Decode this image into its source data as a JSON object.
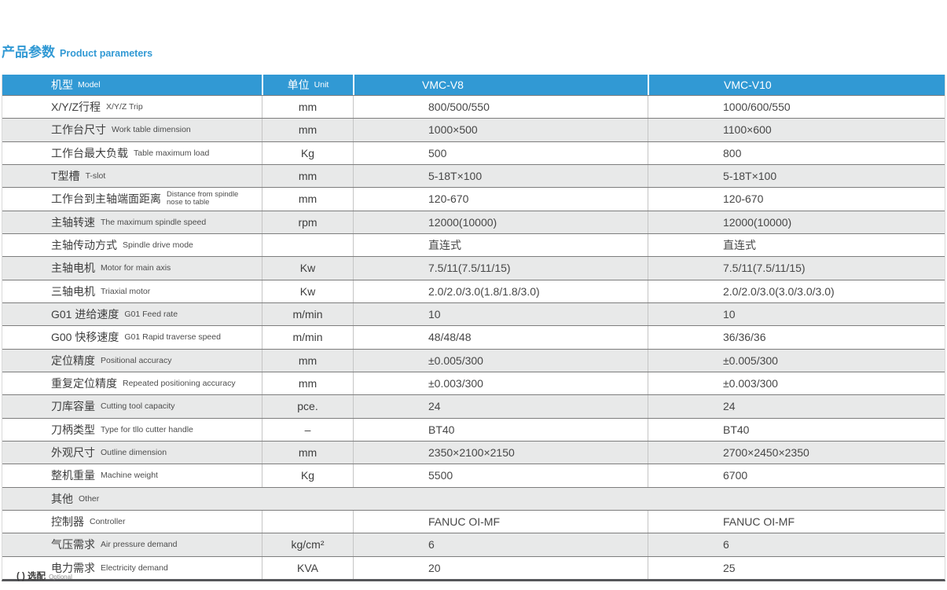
{
  "page": {
    "title_zh": "产品参数",
    "title_en": "Product parameters",
    "footer_zh": "( ) 选配",
    "footer_en": "Optional"
  },
  "colors": {
    "accent_blue": "#3199d4",
    "zebra_gray": "#e8e9e9",
    "bottom_border": "#55565a"
  },
  "table": {
    "header": {
      "col_model_zh": "机型",
      "col_model_en": "Model",
      "col_unit_zh": "单位",
      "col_unit_en": "Unit",
      "col_v8": "VMC-V8",
      "col_v10": "VMC-V10"
    },
    "rows": [
      {
        "label_zh": "X/Y/Z行程",
        "label_en": "X/Y/Z Trip",
        "unit": "mm",
        "v8": "800/500/550",
        "v10": "1000/600/550"
      },
      {
        "label_zh": "工作台尺寸",
        "label_en": "Work table dimension",
        "unit": "mm",
        "v8": "1000×500",
        "v10": "1100×600"
      },
      {
        "label_zh": "工作台最大负载",
        "label_en": "Table maximum load",
        "unit": "Kg",
        "v8": "500",
        "v10": "800"
      },
      {
        "label_zh": "T型槽",
        "label_en": "T-slot",
        "unit": "mm",
        "v8": "5-18T×100",
        "v10": "5-18T×100"
      },
      {
        "label_zh": "工作台到主轴端面距离",
        "label_en": "Distance from spindle",
        "label_en2": "nose to table",
        "unit": "mm",
        "v8": "120-670",
        "v10": "120-670"
      },
      {
        "label_zh": "主轴转速",
        "label_en": "The maximum spindle speed",
        "unit": "rpm",
        "v8": "12000(10000)",
        "v10": "12000(10000)"
      },
      {
        "label_zh": "主轴传动方式",
        "label_en": "Spindle drive mode",
        "unit": "",
        "v8": "直连式",
        "v10": "直连式"
      },
      {
        "label_zh": "主轴电机",
        "label_en": "Motor for main axis",
        "unit": "Kw",
        "v8": "7.5/11(7.5/11/15)",
        "v10": "7.5/11(7.5/11/15)"
      },
      {
        "label_zh": "三轴电机",
        "label_en": "Triaxial motor",
        "unit": "Kw",
        "v8": "2.0/2.0/3.0(1.8/1.8/3.0)",
        "v10": "2.0/2.0/3.0(3.0/3.0/3.0)"
      },
      {
        "label_zh": "G01 进给速度",
        "label_en": "G01 Feed rate",
        "unit": "m/min",
        "v8": "10",
        "v10": "10"
      },
      {
        "label_zh": "G00 快移速度",
        "label_en": "G01 Rapid traverse speed",
        "unit": "m/min",
        "v8": "48/48/48",
        "v10": "36/36/36"
      },
      {
        "label_zh": "定位精度",
        "label_en": "Positional accuracy",
        "unit": "mm",
        "v8": "±0.005/300",
        "v10": "±0.005/300"
      },
      {
        "label_zh": "重复定位精度",
        "label_en": "Repeated positioning accuracy",
        "unit": "mm",
        "v8": "±0.003/300",
        "v10": "±0.003/300"
      },
      {
        "label_zh": "刀库容量",
        "label_en": "Cutting tool capacity",
        "unit": "pce.",
        "v8": "24",
        "v10": "24"
      },
      {
        "label_zh": "刀柄类型",
        "label_en": "Type for tllo cutter handle",
        "unit": "–",
        "v8": "BT40",
        "v10": "BT40"
      },
      {
        "label_zh": "外观尺寸",
        "label_en": "Outline dimension",
        "unit": "mm",
        "v8": "2350×2100×2150",
        "v10": "2700×2450×2350"
      },
      {
        "label_zh": "整机重量",
        "label_en": "Machine weight",
        "unit": "Kg",
        "v8": "5500",
        "v10": "6700"
      },
      {
        "label_zh": "其他",
        "label_en": "Other",
        "section": true
      },
      {
        "label_zh": "控制器",
        "label_en": "Controller",
        "unit": "",
        "v8": "FANUC OI-MF",
        "v10": "FANUC OI-MF"
      },
      {
        "label_zh": "气压需求",
        "label_en": "Air pressure demand",
        "unit": "kg/cm²",
        "v8": "6",
        "v10": "6"
      },
      {
        "label_zh": "电力需求",
        "label_en": "Electricity demand",
        "unit": "KVA",
        "v8": "20",
        "v10": "25"
      }
    ]
  }
}
